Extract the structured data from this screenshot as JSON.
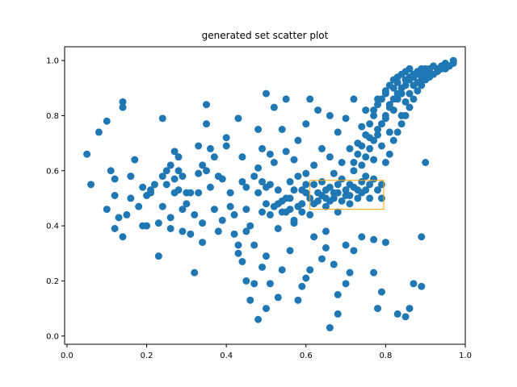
{
  "chart_data": {
    "type": "scatter",
    "title": "generated set scatter plot",
    "xlabel": "",
    "ylabel": "",
    "xlim": [
      -0.006,
      1.0
    ],
    "ylim": [
      -0.03,
      1.05
    ],
    "xticks": [
      "0.0",
      "0.2",
      "0.4",
      "0.6",
      "0.8",
      "1.0"
    ],
    "yticks": [
      "0.0",
      "0.2",
      "0.4",
      "0.6",
      "0.8",
      "1.0"
    ],
    "xtick_values": [
      0.0,
      0.2,
      0.4,
      0.6,
      0.8,
      1.0
    ],
    "ytick_values": [
      0.0,
      0.2,
      0.4,
      0.6,
      0.8,
      1.0
    ],
    "grid": false,
    "marker_color": "#1f77b4",
    "highlight_box": {
      "x": [
        0.61,
        0.795
      ],
      "y": [
        0.46,
        0.565
      ],
      "color": "#ffa500"
    },
    "series": [
      {
        "points": [
          [
            0.05,
            0.66
          ],
          [
            0.06,
            0.55
          ],
          [
            0.08,
            0.74
          ],
          [
            0.1,
            0.78
          ],
          [
            0.12,
            0.51
          ],
          [
            0.13,
            0.43
          ],
          [
            0.12,
            0.39
          ],
          [
            0.14,
            0.83
          ],
          [
            0.14,
            0.85
          ],
          [
            0.16,
            0.5
          ],
          [
            0.17,
            0.64
          ],
          [
            0.19,
            0.54
          ],
          [
            0.2,
            0.51
          ],
          [
            0.21,
            0.52
          ],
          [
            0.2,
            0.4
          ],
          [
            0.23,
            0.29
          ],
          [
            0.24,
            0.58
          ],
          [
            0.24,
            0.79
          ],
          [
            0.25,
            0.55
          ],
          [
            0.26,
            0.39
          ],
          [
            0.26,
            0.43
          ],
          [
            0.27,
            0.67
          ],
          [
            0.27,
            0.52
          ],
          [
            0.28,
            0.65
          ],
          [
            0.28,
            0.6
          ],
          [
            0.29,
            0.58
          ],
          [
            0.29,
            0.38
          ],
          [
            0.3,
            0.52
          ],
          [
            0.31,
            0.37
          ],
          [
            0.32,
            0.44
          ],
          [
            0.32,
            0.23
          ],
          [
            0.33,
            0.69
          ],
          [
            0.33,
            0.52
          ],
          [
            0.34,
            0.41
          ],
          [
            0.34,
            0.34
          ],
          [
            0.35,
            0.84
          ],
          [
            0.35,
            0.77
          ],
          [
            0.36,
            0.68
          ],
          [
            0.37,
            0.65
          ],
          [
            0.38,
            0.38
          ],
          [
            0.39,
            0.57
          ],
          [
            0.4,
            0.69
          ],
          [
            0.4,
            0.72
          ],
          [
            0.41,
            0.52
          ],
          [
            0.42,
            0.44
          ],
          [
            0.42,
            0.37
          ],
          [
            0.43,
            0.79
          ],
          [
            0.43,
            0.33
          ],
          [
            0.44,
            0.65
          ],
          [
            0.44,
            0.56
          ],
          [
            0.45,
            0.46
          ],
          [
            0.45,
            0.54
          ],
          [
            0.45,
            0.38
          ],
          [
            0.46,
            0.4
          ],
          [
            0.47,
            0.33
          ],
          [
            0.47,
            0.58
          ],
          [
            0.48,
            0.75
          ],
          [
            0.48,
            0.61
          ],
          [
            0.49,
            0.68
          ],
          [
            0.49,
            0.45
          ],
          [
            0.5,
            0.88
          ],
          [
            0.5,
            0.54
          ],
          [
            0.5,
            0.1
          ],
          [
            0.51,
            0.55
          ],
          [
            0.51,
            0.66
          ],
          [
            0.52,
            0.83
          ],
          [
            0.52,
            0.63
          ],
          [
            0.53,
            0.53
          ],
          [
            0.53,
            0.39
          ],
          [
            0.54,
            0.75
          ],
          [
            0.54,
            0.45
          ],
          [
            0.55,
            0.86
          ],
          [
            0.55,
            0.67
          ],
          [
            0.55,
            0.45
          ],
          [
            0.56,
            0.56
          ],
          [
            0.56,
            0.5
          ],
          [
            0.57,
            0.64
          ],
          [
            0.57,
            0.41
          ],
          [
            0.58,
            0.58
          ],
          [
            0.58,
            0.71
          ],
          [
            0.59,
            0.48
          ],
          [
            0.59,
            0.53
          ],
          [
            0.6,
            0.59
          ],
          [
            0.6,
            0.77
          ],
          [
            0.6,
            0.52
          ],
          [
            0.61,
            0.86
          ],
          [
            0.61,
            0.44
          ],
          [
            0.62,
            0.62
          ],
          [
            0.62,
            0.55
          ],
          [
            0.63,
            0.82
          ],
          [
            0.63,
            0.49
          ],
          [
            0.64,
            0.68
          ],
          [
            0.64,
            0.56
          ],
          [
            0.65,
            0.5
          ],
          [
            0.65,
            0.47
          ],
          [
            0.65,
            0.38
          ],
          [
            0.66,
            0.8
          ],
          [
            0.66,
            0.54
          ],
          [
            0.66,
            0.65
          ],
          [
            0.67,
            0.5
          ],
          [
            0.67,
            0.59
          ],
          [
            0.68,
            0.52
          ],
          [
            0.68,
            0.74
          ],
          [
            0.68,
            0.45
          ],
          [
            0.69,
            0.57
          ],
          [
            0.69,
            0.63
          ],
          [
            0.7,
            0.51
          ],
          [
            0.7,
            0.79
          ],
          [
            0.71,
            0.55
          ],
          [
            0.71,
            0.48
          ],
          [
            0.71,
            0.68
          ],
          [
            0.72,
            0.6
          ],
          [
            0.72,
            0.86
          ],
          [
            0.73,
            0.53
          ],
          [
            0.73,
            0.7
          ],
          [
            0.74,
            0.76
          ],
          [
            0.74,
            0.52
          ],
          [
            0.75,
            0.82
          ],
          [
            0.75,
            0.58
          ],
          [
            0.76,
            0.72
          ],
          [
            0.76,
            0.5
          ],
          [
            0.77,
            0.8
          ],
          [
            0.77,
            0.64
          ],
          [
            0.78,
            0.86
          ],
          [
            0.78,
            0.75
          ],
          [
            0.79,
            0.69
          ],
          [
            0.79,
            0.55
          ],
          [
            0.8,
            0.88
          ],
          [
            0.8,
            0.79
          ],
          [
            0.81,
            0.84
          ],
          [
            0.81,
            0.74
          ],
          [
            0.82,
            0.9
          ],
          [
            0.82,
            0.82
          ],
          [
            0.83,
            0.92
          ],
          [
            0.83,
            0.86
          ],
          [
            0.84,
            0.88
          ],
          [
            0.84,
            0.8
          ],
          [
            0.85,
            0.93
          ],
          [
            0.85,
            0.85
          ],
          [
            0.86,
            0.94
          ],
          [
            0.86,
            0.88
          ],
          [
            0.87,
            0.95
          ],
          [
            0.87,
            0.91
          ],
          [
            0.88,
            0.96
          ],
          [
            0.88,
            0.92
          ],
          [
            0.89,
            0.97
          ],
          [
            0.89,
            0.93
          ],
          [
            0.9,
            0.97
          ],
          [
            0.9,
            0.94
          ],
          [
            0.91,
            0.96
          ],
          [
            0.92,
            0.98
          ],
          [
            0.93,
            0.97
          ],
          [
            0.94,
            0.98
          ],
          [
            0.95,
            0.99
          ],
          [
            0.97,
            1.0
          ],
          [
            0.89,
            0.36
          ],
          [
            0.9,
            0.63
          ],
          [
            0.89,
            0.18
          ],
          [
            0.87,
            0.19
          ],
          [
            0.86,
            0.1
          ],
          [
            0.85,
            0.07
          ],
          [
            0.83,
            0.08
          ],
          [
            0.79,
            0.16
          ],
          [
            0.78,
            0.1
          ],
          [
            0.77,
            0.23
          ],
          [
            0.8,
            0.34
          ],
          [
            0.77,
            0.35
          ],
          [
            0.74,
            0.36
          ],
          [
            0.72,
            0.31
          ],
          [
            0.71,
            0.23
          ],
          [
            0.7,
            0.33
          ],
          [
            0.7,
            0.19
          ],
          [
            0.68,
            0.15
          ],
          [
            0.68,
            0.08
          ],
          [
            0.67,
            0.26
          ],
          [
            0.66,
            0.03
          ],
          [
            0.65,
            0.32
          ],
          [
            0.64,
            0.28
          ],
          [
            0.62,
            0.36
          ],
          [
            0.61,
            0.24
          ],
          [
            0.6,
            0.21
          ],
          [
            0.59,
            0.18
          ],
          [
            0.58,
            0.13
          ],
          [
            0.57,
            0.42
          ],
          [
            0.56,
            0.31
          ],
          [
            0.54,
            0.24
          ],
          [
            0.53,
            0.14
          ],
          [
            0.51,
            0.19
          ],
          [
            0.5,
            0.29
          ],
          [
            0.49,
            0.25
          ],
          [
            0.48,
            0.06
          ],
          [
            0.47,
            0.19
          ],
          [
            0.46,
            0.13
          ],
          [
            0.45,
            0.2
          ],
          [
            0.44,
            0.27
          ],
          [
            0.43,
            0.3
          ],
          [
            0.41,
            0.47
          ],
          [
            0.39,
            0.42
          ],
          [
            0.38,
            0.58
          ],
          [
            0.37,
            0.46
          ],
          [
            0.36,
            0.54
          ],
          [
            0.35,
            0.6
          ],
          [
            0.34,
            0.62
          ],
          [
            0.33,
            0.59
          ],
          [
            0.31,
            0.52
          ],
          [
            0.3,
            0.48
          ],
          [
            0.29,
            0.46
          ],
          [
            0.28,
            0.53
          ],
          [
            0.27,
            0.57
          ],
          [
            0.26,
            0.62
          ],
          [
            0.25,
            0.6
          ],
          [
            0.24,
            0.47
          ],
          [
            0.23,
            0.41
          ],
          [
            0.22,
            0.55
          ],
          [
            0.21,
            0.53
          ],
          [
            0.19,
            0.4
          ],
          [
            0.18,
            0.47
          ],
          [
            0.16,
            0.58
          ],
          [
            0.15,
            0.44
          ],
          [
            0.14,
            0.36
          ],
          [
            0.12,
            0.57
          ],
          [
            0.11,
            0.6
          ],
          [
            0.1,
            0.46
          ],
          [
            0.48,
            0.52
          ],
          [
            0.49,
            0.56
          ],
          [
            0.5,
            0.48
          ],
          [
            0.51,
            0.44
          ],
          [
            0.52,
            0.47
          ],
          [
            0.53,
            0.48
          ],
          [
            0.54,
            0.49
          ],
          [
            0.55,
            0.5
          ],
          [
            0.56,
            0.46
          ],
          [
            0.57,
            0.53
          ],
          [
            0.58,
            0.47
          ],
          [
            0.59,
            0.45
          ],
          [
            0.6,
            0.55
          ],
          [
            0.61,
            0.5
          ],
          [
            0.62,
            0.48
          ],
          [
            0.63,
            0.52
          ],
          [
            0.64,
            0.51
          ],
          [
            0.65,
            0.53
          ],
          [
            0.66,
            0.49
          ],
          [
            0.67,
            0.52
          ],
          [
            0.68,
            0.55
          ],
          [
            0.69,
            0.49
          ],
          [
            0.7,
            0.53
          ],
          [
            0.71,
            0.51
          ],
          [
            0.72,
            0.54
          ],
          [
            0.73,
            0.5
          ],
          [
            0.74,
            0.56
          ],
          [
            0.75,
            0.53
          ],
          [
            0.76,
            0.55
          ],
          [
            0.77,
            0.57
          ],
          [
            0.78,
            0.53
          ],
          [
            0.79,
            0.5
          ],
          [
            0.8,
            0.63
          ],
          [
            0.81,
            0.66
          ],
          [
            0.82,
            0.71
          ],
          [
            0.83,
            0.74
          ],
          [
            0.84,
            0.77
          ],
          [
            0.85,
            0.8
          ],
          [
            0.86,
            0.83
          ],
          [
            0.87,
            0.86
          ],
          [
            0.88,
            0.89
          ],
          [
            0.89,
            0.91
          ],
          [
            0.9,
            0.93
          ],
          [
            0.91,
            0.94
          ],
          [
            0.92,
            0.95
          ],
          [
            0.93,
            0.96
          ],
          [
            0.94,
            0.97
          ],
          [
            0.95,
            0.97
          ],
          [
            0.96,
            0.98
          ],
          [
            0.97,
            0.99
          ],
          [
            0.74,
            0.62
          ],
          [
            0.75,
            0.65
          ],
          [
            0.76,
            0.68
          ],
          [
            0.77,
            0.71
          ],
          [
            0.78,
            0.73
          ],
          [
            0.79,
            0.77
          ],
          [
            0.8,
            0.8
          ],
          [
            0.81,
            0.83
          ],
          [
            0.82,
            0.86
          ],
          [
            0.83,
            0.88
          ],
          [
            0.84,
            0.9
          ],
          [
            0.85,
            0.91
          ],
          [
            0.86,
            0.93
          ],
          [
            0.87,
            0.94
          ],
          [
            0.88,
            0.95
          ],
          [
            0.89,
            0.95
          ],
          [
            0.9,
            0.96
          ],
          [
            0.91,
            0.97
          ],
          [
            0.72,
            0.63
          ],
          [
            0.73,
            0.66
          ],
          [
            0.74,
            0.69
          ],
          [
            0.75,
            0.73
          ],
          [
            0.76,
            0.77
          ],
          [
            0.77,
            0.82
          ],
          [
            0.78,
            0.84
          ],
          [
            0.79,
            0.86
          ],
          [
            0.8,
            0.89
          ],
          [
            0.81,
            0.91
          ],
          [
            0.82,
            0.93
          ],
          [
            0.83,
            0.94
          ],
          [
            0.84,
            0.95
          ],
          [
            0.85,
            0.96
          ],
          [
            0.86,
            0.97
          ]
        ]
      }
    ]
  }
}
